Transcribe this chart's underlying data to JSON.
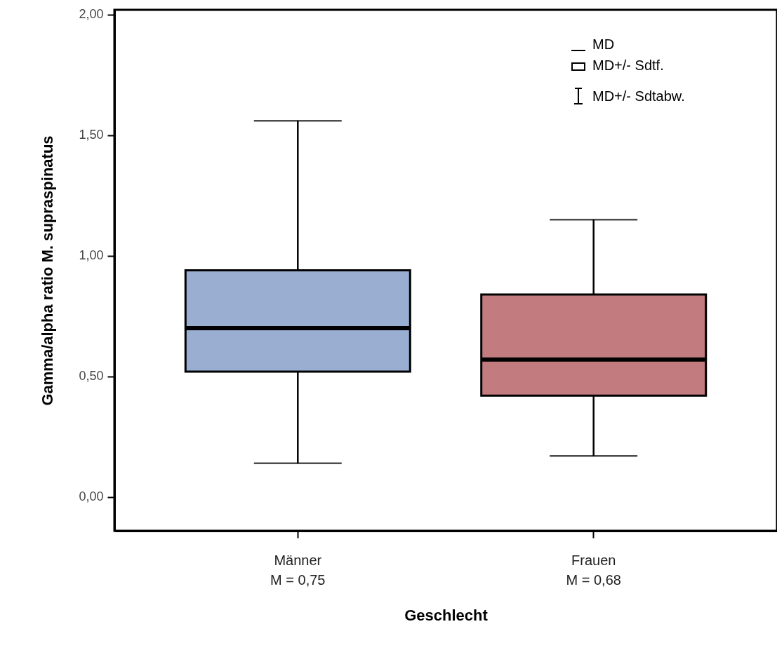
{
  "chart_data": {
    "type": "box",
    "xlabel": "Geschlecht",
    "ylabel": "Gamma/alpha ratio M. supraspinatus",
    "categories": [
      "Männer\nM = 0,75",
      "Frauen\nM = 0,68"
    ],
    "boxes": [
      {
        "low": 0.14,
        "q1": 0.52,
        "median": 0.7,
        "q3": 0.94,
        "high": 1.56
      },
      {
        "low": 0.17,
        "q1": 0.42,
        "median": 0.57,
        "q3": 0.84,
        "high": 1.15
      }
    ],
    "colors": [
      "#9aaed2",
      "#c27c80"
    ],
    "ylim": [
      -0.14,
      2.02
    ],
    "yticks": [
      {
        "value": 0,
        "label": "0,00"
      },
      {
        "value": 0.5,
        "label": "0,50"
      },
      {
        "value": 1,
        "label": "1,00"
      },
      {
        "value": 1.5,
        "label": "1,50"
      },
      {
        "value": 2,
        "label": "2,00"
      }
    ],
    "annotations": [
      "MD",
      "MD+/- Sdtf.",
      "MD+/- Sdtabw."
    ]
  }
}
